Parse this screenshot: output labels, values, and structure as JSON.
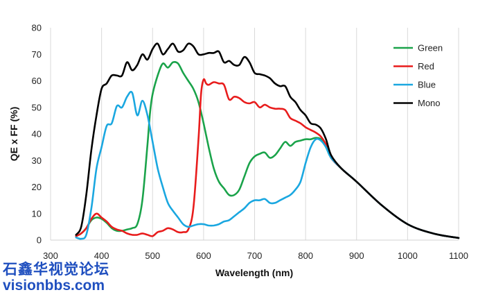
{
  "chart_data": {
    "type": "line",
    "title": "",
    "xlabel": "Wavelength (nm)",
    "ylabel": "QE x FF (%)",
    "xlim": [
      300,
      1100
    ],
    "ylim": [
      0,
      80
    ],
    "xticks": [
      300,
      400,
      500,
      600,
      700,
      800,
      900,
      1000,
      1100
    ],
    "yticks": [
      0,
      10,
      20,
      30,
      40,
      50,
      60,
      70,
      80
    ],
    "grid": "vertical",
    "legend_position": "top-right",
    "series": [
      {
        "name": "Green",
        "color": "#1aa34a",
        "points": [
          [
            350,
            1.5
          ],
          [
            360,
            2.5
          ],
          [
            370,
            4.5
          ],
          [
            380,
            7.5
          ],
          [
            390,
            8.5
          ],
          [
            400,
            8
          ],
          [
            410,
            6.5
          ],
          [
            420,
            4.5
          ],
          [
            430,
            3.5
          ],
          [
            440,
            3.5
          ],
          [
            450,
            4
          ],
          [
            460,
            4.5
          ],
          [
            470,
            6
          ],
          [
            480,
            15
          ],
          [
            490,
            36
          ],
          [
            495,
            48
          ],
          [
            500,
            55
          ],
          [
            510,
            62
          ],
          [
            520,
            66.5
          ],
          [
            530,
            65
          ],
          [
            540,
            67
          ],
          [
            550,
            66.5
          ],
          [
            560,
            63
          ],
          [
            570,
            60
          ],
          [
            580,
            57
          ],
          [
            590,
            52
          ],
          [
            600,
            44
          ],
          [
            610,
            35
          ],
          [
            620,
            27
          ],
          [
            630,
            22
          ],
          [
            640,
            19.5
          ],
          [
            650,
            17
          ],
          [
            660,
            17
          ],
          [
            670,
            19
          ],
          [
            680,
            24
          ],
          [
            690,
            29
          ],
          [
            700,
            31.5
          ],
          [
            710,
            32.5
          ],
          [
            720,
            33
          ],
          [
            730,
            31
          ],
          [
            740,
            32
          ],
          [
            750,
            34.5
          ],
          [
            760,
            37
          ],
          [
            770,
            35.5
          ],
          [
            780,
            37
          ],
          [
            790,
            37.5
          ],
          [
            800,
            38
          ],
          [
            810,
            38
          ],
          [
            820,
            38.5
          ],
          [
            830,
            38
          ],
          [
            840,
            35
          ],
          [
            850,
            31
          ],
          [
            870,
            27
          ],
          [
            900,
            22
          ],
          [
            950,
            13
          ],
          [
            1000,
            6
          ],
          [
            1050,
            2.5
          ],
          [
            1100,
            0.8
          ]
        ]
      },
      {
        "name": "Red",
        "color": "#e81c1c",
        "points": [
          [
            350,
            1.5
          ],
          [
            360,
            2.5
          ],
          [
            370,
            4.5
          ],
          [
            380,
            8
          ],
          [
            390,
            10
          ],
          [
            400,
            8.5
          ],
          [
            410,
            7
          ],
          [
            420,
            5
          ],
          [
            430,
            4
          ],
          [
            440,
            3.5
          ],
          [
            450,
            2.5
          ],
          [
            460,
            2
          ],
          [
            470,
            2
          ],
          [
            480,
            2.5
          ],
          [
            490,
            2
          ],
          [
            500,
            1.5
          ],
          [
            510,
            3
          ],
          [
            520,
            3.5
          ],
          [
            530,
            4.5
          ],
          [
            540,
            4
          ],
          [
            550,
            3
          ],
          [
            560,
            3
          ],
          [
            570,
            4
          ],
          [
            580,
            12
          ],
          [
            590,
            38
          ],
          [
            595,
            55
          ],
          [
            600,
            60.5
          ],
          [
            605,
            59
          ],
          [
            610,
            58.5
          ],
          [
            620,
            59.5
          ],
          [
            630,
            59
          ],
          [
            640,
            58.5
          ],
          [
            650,
            53
          ],
          [
            660,
            54
          ],
          [
            670,
            53.5
          ],
          [
            680,
            52
          ],
          [
            690,
            51.5
          ],
          [
            700,
            52
          ],
          [
            710,
            50
          ],
          [
            720,
            51
          ],
          [
            730,
            50
          ],
          [
            740,
            49.5
          ],
          [
            750,
            49.5
          ],
          [
            760,
            49
          ],
          [
            770,
            46
          ],
          [
            780,
            45
          ],
          [
            790,
            44
          ],
          [
            800,
            42.5
          ],
          [
            810,
            41.5
          ],
          [
            820,
            40.5
          ],
          [
            830,
            39
          ],
          [
            840,
            36
          ],
          [
            850,
            31
          ],
          [
            870,
            27
          ],
          [
            900,
            22
          ],
          [
            950,
            13
          ],
          [
            1000,
            6
          ],
          [
            1050,
            2.5
          ],
          [
            1100,
            0.8
          ]
        ]
      },
      {
        "name": "Blue",
        "color": "#1aa7e0",
        "points": [
          [
            350,
            1
          ],
          [
            360,
            0.5
          ],
          [
            370,
            2
          ],
          [
            380,
            12
          ],
          [
            390,
            27
          ],
          [
            400,
            35
          ],
          [
            410,
            43
          ],
          [
            420,
            44
          ],
          [
            430,
            50.5
          ],
          [
            440,
            50
          ],
          [
            450,
            54
          ],
          [
            460,
            55.5
          ],
          [
            470,
            47
          ],
          [
            480,
            52.5
          ],
          [
            490,
            47
          ],
          [
            500,
            37
          ],
          [
            510,
            27
          ],
          [
            520,
            20
          ],
          [
            530,
            14
          ],
          [
            540,
            11
          ],
          [
            550,
            8.5
          ],
          [
            560,
            6
          ],
          [
            570,
            5
          ],
          [
            580,
            5.5
          ],
          [
            590,
            6
          ],
          [
            600,
            6
          ],
          [
            610,
            5.5
          ],
          [
            620,
            5.5
          ],
          [
            630,
            6
          ],
          [
            640,
            7
          ],
          [
            650,
            7.5
          ],
          [
            660,
            9
          ],
          [
            670,
            10.5
          ],
          [
            680,
            12
          ],
          [
            690,
            14
          ],
          [
            700,
            15
          ],
          [
            710,
            15
          ],
          [
            720,
            15.5
          ],
          [
            730,
            14
          ],
          [
            740,
            14
          ],
          [
            750,
            15
          ],
          [
            760,
            16
          ],
          [
            770,
            17
          ],
          [
            780,
            19
          ],
          [
            790,
            22
          ],
          [
            800,
            29
          ],
          [
            810,
            35
          ],
          [
            820,
            38
          ],
          [
            830,
            37.5
          ],
          [
            840,
            35
          ],
          [
            850,
            31
          ],
          [
            870,
            27
          ],
          [
            900,
            22
          ],
          [
            950,
            13
          ],
          [
            1000,
            6
          ],
          [
            1050,
            2.5
          ],
          [
            1100,
            0.8
          ]
        ]
      },
      {
        "name": "Mono",
        "color": "#000000",
        "points": [
          [
            350,
            2
          ],
          [
            360,
            5
          ],
          [
            370,
            17
          ],
          [
            380,
            34
          ],
          [
            390,
            47
          ],
          [
            400,
            57
          ],
          [
            410,
            59
          ],
          [
            420,
            62
          ],
          [
            430,
            62
          ],
          [
            440,
            62
          ],
          [
            450,
            67
          ],
          [
            460,
            64
          ],
          [
            470,
            66
          ],
          [
            480,
            70
          ],
          [
            490,
            68
          ],
          [
            500,
            72
          ],
          [
            510,
            74
          ],
          [
            520,
            70
          ],
          [
            530,
            72
          ],
          [
            540,
            74
          ],
          [
            550,
            71
          ],
          [
            560,
            71.5
          ],
          [
            570,
            74
          ],
          [
            580,
            73
          ],
          [
            590,
            70
          ],
          [
            600,
            70
          ],
          [
            610,
            70.5
          ],
          [
            620,
            70.5
          ],
          [
            630,
            71
          ],
          [
            640,
            67
          ],
          [
            650,
            67.5
          ],
          [
            660,
            66
          ],
          [
            670,
            66
          ],
          [
            680,
            69
          ],
          [
            690,
            67
          ],
          [
            700,
            63
          ],
          [
            710,
            62.5
          ],
          [
            720,
            62
          ],
          [
            730,
            61
          ],
          [
            740,
            59
          ],
          [
            750,
            58
          ],
          [
            760,
            58
          ],
          [
            770,
            54
          ],
          [
            780,
            52
          ],
          [
            790,
            49
          ],
          [
            800,
            47
          ],
          [
            810,
            44
          ],
          [
            820,
            43.5
          ],
          [
            830,
            42
          ],
          [
            840,
            38
          ],
          [
            850,
            32
          ],
          [
            870,
            27
          ],
          [
            900,
            22
          ],
          [
            950,
            13
          ],
          [
            1000,
            6
          ],
          [
            1050,
            2.5
          ],
          [
            1100,
            0.8
          ]
        ]
      }
    ]
  },
  "watermark": {
    "chinese": "石鑫华视觉论坛",
    "url": "visionbbs.com"
  }
}
